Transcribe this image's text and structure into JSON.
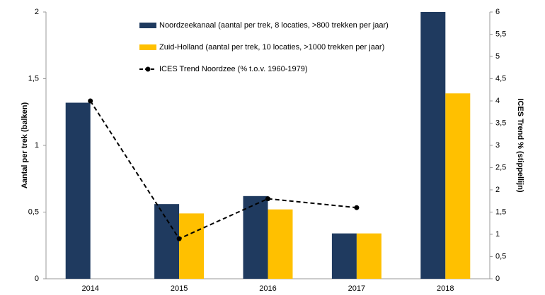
{
  "chart_data": {
    "type": "bar",
    "categories": [
      "2014",
      "2015",
      "2016",
      "2017",
      "2018"
    ],
    "series": [
      {
        "name": "Noordzeekanaal (aantal per trek, 8 locaties, >800 trekken per jaar)",
        "color": "#1f3a5f",
        "type": "bar",
        "values": [
          1.32,
          0.56,
          0.62,
          0.34,
          2.0
        ]
      },
      {
        "name": "Zuid-Holland (aantal per trek, 10 locaties, >1000 trekken per jaar)",
        "color": "#ffc000",
        "type": "bar",
        "values": [
          null,
          0.49,
          0.52,
          0.34,
          1.39
        ]
      },
      {
        "name": "ICES Trend Noordzee (% t.o.v. 1960-1979)",
        "color": "#000000",
        "type": "line",
        "axis": "y2",
        "values": [
          4.0,
          0.9,
          1.8,
          1.6,
          null
        ]
      }
    ],
    "y_label": "Aantal per trek (balken)",
    "y2_label": "ICES Trend % (stippellijn)",
    "ylim": [
      0,
      2
    ],
    "yticks": [
      0,
      {
        "value": 0.5,
        "label": "0,5"
      },
      1,
      {
        "value": 1.5,
        "label": "1,5"
      },
      2
    ],
    "y2lim": [
      0,
      6
    ],
    "y2ticks": [
      0,
      {
        "value": 0.5,
        "label": "0,5"
      },
      1,
      {
        "value": 1.5,
        "label": "1,5"
      },
      2,
      {
        "value": 2.5,
        "label": "2,5"
      },
      3,
      {
        "value": 3.5,
        "label": "3,5"
      },
      4,
      {
        "value": 4.5,
        "label": "4,5"
      },
      5,
      {
        "value": 5.5,
        "label": "5,5"
      },
      6
    ]
  }
}
